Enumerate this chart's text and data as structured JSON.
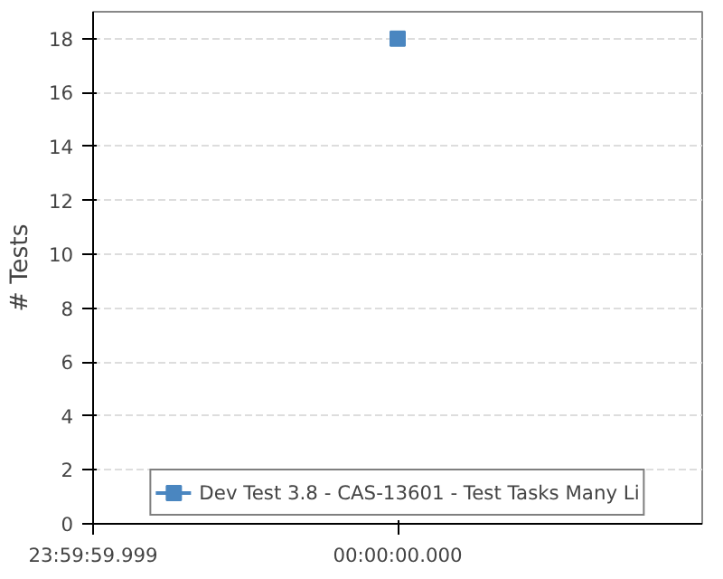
{
  "chart_data": {
    "type": "line",
    "ylabel": "# Tests",
    "categories": [
      "23:59:59.999",
      "00:00:00.000",
      null
    ],
    "series": [
      {
        "name": "Dev Test 3.8 - CAS-13601 - Test Tasks Many Li",
        "color": "#4a86c0",
        "values": [
          null,
          18,
          null
        ]
      }
    ],
    "ylim": [
      0,
      19
    ],
    "yticks": [
      0,
      2,
      4,
      6,
      8,
      10,
      12,
      14,
      16,
      18
    ],
    "grid": "y",
    "legend": "bottom",
    "marker": "square"
  }
}
